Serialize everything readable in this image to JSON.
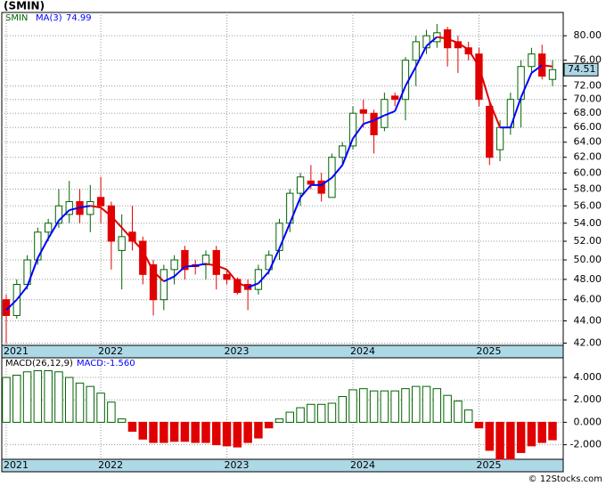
{
  "title": "(SMIN)",
  "footer": "© 12Stocks.com",
  "chart_data": [
    {
      "type": "candlestick",
      "symbol": "SMIN",
      "ma_name": "MA(3)",
      "log_scale": true,
      "grid": true,
      "categories": [
        "2021",
        null,
        null,
        null,
        null,
        null,
        null,
        null,
        null,
        "2022",
        null,
        null,
        null,
        null,
        null,
        null,
        null,
        null,
        null,
        null,
        null,
        "2023",
        null,
        null,
        null,
        null,
        null,
        null,
        null,
        null,
        null,
        null,
        null,
        "2024",
        null,
        null,
        null,
        null,
        null,
        null,
        null,
        null,
        null,
        null,
        null,
        "2025",
        null,
        null,
        null,
        null,
        null,
        null,
        null
      ],
      "open": [
        46,
        44.5,
        47.5,
        50,
        53,
        54,
        55,
        56.5,
        55,
        57,
        56,
        51,
        53,
        52,
        49.5,
        46,
        49,
        51,
        49.5,
        49.5,
        51,
        48.5,
        48,
        47.5,
        47,
        49,
        51,
        54,
        57.5,
        59,
        59,
        57,
        62,
        63.5,
        68.5,
        68,
        66,
        70.5,
        70,
        76,
        78,
        79,
        81,
        79,
        78,
        77,
        69,
        63,
        66,
        70,
        75,
        77,
        73
      ],
      "high": [
        46.5,
        48,
        50.5,
        53.5,
        54.5,
        58,
        59,
        58,
        58.5,
        59.5,
        56.5,
        55,
        56,
        52.5,
        50,
        49.5,
        50.5,
        51.5,
        50,
        51,
        51.5,
        49,
        48.2,
        48,
        49.5,
        51,
        54.5,
        58,
        60,
        61,
        60,
        62.5,
        64,
        69,
        70,
        68.5,
        71,
        71,
        76.5,
        80,
        81,
        82,
        81.5,
        80,
        79,
        78,
        70,
        67,
        71,
        76,
        78,
        78.5,
        76
      ],
      "low": [
        42,
        44.2,
        47,
        49.5,
        52,
        53.5,
        54,
        54,
        53,
        54,
        49,
        47,
        51,
        47.5,
        44.5,
        45,
        47.5,
        48,
        48.5,
        48,
        47,
        47.5,
        46.5,
        45,
        46.5,
        48.5,
        50,
        53,
        56,
        58,
        56.5,
        57,
        61,
        63,
        66,
        62.5,
        65.5,
        69,
        67,
        72,
        77,
        78,
        75,
        74,
        76,
        69,
        61,
        61.5,
        65,
        66,
        74,
        73,
        72
      ],
      "close": [
        44.5,
        47.5,
        50,
        53,
        54,
        56,
        56.5,
        55,
        56.5,
        56,
        52,
        52.5,
        52,
        48.5,
        46,
        49,
        50,
        49,
        49.3,
        50.5,
        48.5,
        48,
        46.7,
        47,
        49,
        50.5,
        54,
        57.5,
        59.5,
        58.6,
        57.5,
        62,
        63.5,
        68,
        68,
        65,
        70,
        70,
        76,
        79,
        80,
        80.5,
        78,
        78,
        77,
        70,
        62,
        66,
        70,
        75,
        77,
        73.5,
        74.51
      ],
      "ma": [
        45,
        46,
        47.3,
        50.2,
        52.3,
        54.3,
        55.5,
        55.8,
        56,
        55.8,
        54.8,
        53.5,
        52.2,
        51,
        48.8,
        47.8,
        48.3,
        49.3,
        49.4,
        49.6,
        49.4,
        49,
        47.7,
        47.2,
        47.6,
        48.8,
        51.2,
        54,
        57,
        58.5,
        58.5,
        59.4,
        61,
        64.5,
        66.5,
        67,
        67.7,
        68.3,
        72,
        75,
        78.3,
        79.8,
        79.5,
        78.8,
        77.7,
        75,
        69.7,
        66,
        66,
        70.3,
        74,
        75.2,
        74.99
      ],
      "up_color": "#006400",
      "down_color": "#e00000",
      "ma_up_color": "#0000ff",
      "ma_down_color": "#e00000",
      "ylim": [
        41.8,
        84
      ],
      "yticks": [
        {
          "value": 42,
          "label": "42.00"
        },
        {
          "value": 44,
          "label": "44.00"
        },
        {
          "value": 46,
          "label": "46.00"
        },
        {
          "value": 48,
          "label": "48.00"
        },
        {
          "value": 50,
          "label": "50.00"
        },
        {
          "value": 52,
          "label": "52.00"
        },
        {
          "value": 54,
          "label": "54.00"
        },
        {
          "value": 56,
          "label": "56.00"
        },
        {
          "value": 58,
          "label": "58.00"
        },
        {
          "value": 60,
          "label": "60.00"
        },
        {
          "value": 62,
          "label": "62.00"
        },
        {
          "value": 64,
          "label": "64.00"
        },
        {
          "value": 66,
          "label": "66.00"
        },
        {
          "value": 68,
          "label": "68.00"
        },
        {
          "value": 70,
          "label": "70.00"
        },
        {
          "value": 72,
          "label": "72.00"
        },
        {
          "value": 76,
          "label": "76.00"
        },
        {
          "value": 80,
          "label": "80.00"
        }
      ]
    },
    {
      "type": "bar",
      "name": "MACD(26,12,9)",
      "value_text": "MACD:-1.560",
      "grid": true,
      "categories": [
        "2021",
        null,
        null,
        null,
        null,
        null,
        null,
        null,
        null,
        "2022",
        null,
        null,
        null,
        null,
        null,
        null,
        null,
        null,
        null,
        null,
        null,
        "2023",
        null,
        null,
        null,
        null,
        null,
        null,
        null,
        null,
        null,
        null,
        null,
        "2024",
        null,
        null,
        null,
        null,
        null,
        null,
        null,
        null,
        null,
        null,
        null,
        "2025",
        null,
        null,
        null,
        null,
        null,
        null,
        null
      ],
      "values": [
        4.0,
        4.2,
        4.5,
        4.6,
        4.6,
        4.5,
        4.0,
        3.5,
        3.2,
        2.6,
        1.8,
        0.3,
        -0.8,
        -1.5,
        -1.8,
        -1.8,
        -1.7,
        -1.7,
        -1.8,
        -1.8,
        -2.0,
        -2.1,
        -2.2,
        -1.8,
        -1.4,
        -0.5,
        0.3,
        0.9,
        1.3,
        1.6,
        1.6,
        1.7,
        2.3,
        2.9,
        3.0,
        2.8,
        2.8,
        2.8,
        3.0,
        3.2,
        3.2,
        3.0,
        2.4,
        1.9,
        1.1,
        -0.5,
        -2.5,
        -3.3,
        -3.3,
        -2.7,
        -2.1,
        -1.8,
        -1.56
      ],
      "up_color": "#006400",
      "down_color": "#e00000",
      "ylim": [
        -3.3,
        5.75
      ],
      "yticks": [
        {
          "value": 4,
          "label": "4.000"
        },
        {
          "value": 2,
          "label": "2.000"
        },
        {
          "value": 0,
          "label": "0.000"
        },
        {
          "value": -2,
          "label": "-2.000"
        }
      ]
    }
  ]
}
